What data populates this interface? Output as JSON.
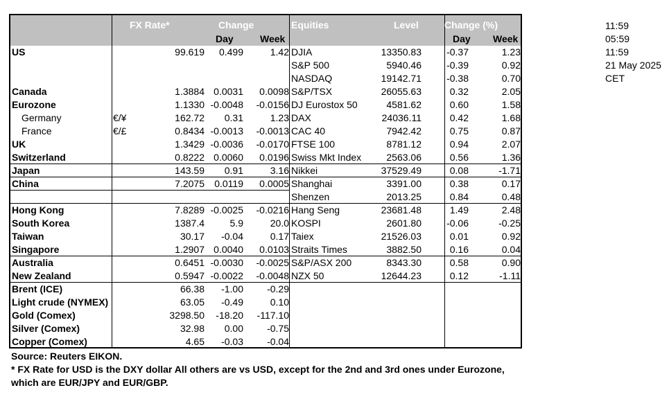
{
  "headers": {
    "fx_rate": "FX Rate*",
    "change": "Change",
    "day": "Day",
    "week": "Week",
    "equities": "Equities",
    "level": "Level",
    "change_pct": "Change (%)",
    "day2": "Day",
    "week2": "Week"
  },
  "rows": [
    {
      "name": "US",
      "sym": "",
      "fx": "99.619",
      "fxd": "0.499",
      "fxw": "1.42",
      "idx": "DJIA",
      "lvl": "13350.83",
      "ed": "-0.37",
      "ew": "1.23"
    },
    {
      "name": "",
      "sym": "",
      "fx": "",
      "fxd": "",
      "fxw": "",
      "idx": "S&P 500",
      "lvl": "5940.46",
      "ed": "-0.39",
      "ew": "0.92"
    },
    {
      "name": "",
      "sym": "",
      "fx": "",
      "fxd": "",
      "fxw": "",
      "idx": "NASDAQ",
      "lvl": "19142.71",
      "ed": "-0.38",
      "ew": "0.70"
    },
    {
      "name": "Canada",
      "sym": "",
      "fx": "1.3884",
      "fxd": "0.0031",
      "fxw": "0.0098",
      "idx": "S&P/TSX",
      "lvl": "26055.63",
      "ed": "0.32",
      "ew": "2.05"
    },
    {
      "name": "Eurozone",
      "sym": "",
      "fx": "1.1330",
      "fxd": "-0.0048",
      "fxw": "-0.0156",
      "idx": "DJ Eurostox 50",
      "lvl": "4581.62",
      "ed": "0.60",
      "ew": "1.58"
    },
    {
      "name": "Germany",
      "sym": "€/¥",
      "fx": "162.72",
      "fxd": "0.31",
      "fxw": "1.23",
      "idx": "DAX",
      "lvl": "24036.11",
      "ed": "0.42",
      "ew": "1.68"
    },
    {
      "name": "France",
      "sym": "€/£",
      "fx": "0.8434",
      "fxd": "-0.0013",
      "fxw": "-0.0013",
      "idx": "CAC 40",
      "lvl": "7942.42",
      "ed": "0.75",
      "ew": "0.87"
    },
    {
      "name": "UK",
      "sym": "",
      "fx": "1.3429",
      "fxd": "-0.0036",
      "fxw": "-0.0170",
      "idx": "FTSE 100",
      "lvl": "8781.12",
      "ed": "0.94",
      "ew": "2.07"
    },
    {
      "name": "Switzerland",
      "sym": "",
      "fx": "0.8222",
      "fxd": "0.0060",
      "fxw": "0.0196",
      "idx": "Swiss Mkt Index",
      "lvl": "2563.06",
      "ed": "0.56",
      "ew": "1.36"
    },
    {
      "name": "Japan",
      "sym": "",
      "fx": "143.59",
      "fxd": "0.91",
      "fxw": "3.16",
      "idx": "Nikkei",
      "lvl": "37529.49",
      "ed": "0.08",
      "ew": "-1.71"
    },
    {
      "name": "China",
      "sym": "",
      "fx": "7.2075",
      "fxd": "0.0119",
      "fxw": "0.0005",
      "idx": "Shanghai",
      "lvl": "3391.00",
      "ed": "0.38",
      "ew": "0.17"
    },
    {
      "name": "",
      "sym": "",
      "fx": "",
      "fxd": "",
      "fxw": "",
      "idx": "Shenzen",
      "lvl": "2013.25",
      "ed": "0.84",
      "ew": "0.48"
    },
    {
      "name": "Hong Kong",
      "sym": "",
      "fx": "7.8289",
      "fxd": "-0.0025",
      "fxw": "-0.0216",
      "idx": "Hang Seng",
      "lvl": "23681.48",
      "ed": "1.49",
      "ew": "2.48"
    },
    {
      "name": "South Korea",
      "sym": "",
      "fx": "1387.4",
      "fxd": "5.9",
      "fxw": "20.0",
      "idx": "KOSPI",
      "lvl": "2601.80",
      "ed": "-0.06",
      "ew": "-0.25"
    },
    {
      "name": "Taiwan",
      "sym": "",
      "fx": "30.17",
      "fxd": "-0.04",
      "fxw": "0.17",
      "idx": "Taiex",
      "lvl": "21526.03",
      "ed": "0.01",
      "ew": "0.92"
    },
    {
      "name": "Singapore",
      "sym": "",
      "fx": "1.2907",
      "fxd": "0.0040",
      "fxw": "0.0103",
      "idx": "Straits Times",
      "lvl": "3882.50",
      "ed": "0.16",
      "ew": "0.04"
    },
    {
      "name": "Australia",
      "sym": "",
      "fx": "0.6451",
      "fxd": "-0.0030",
      "fxw": "-0.0025",
      "idx": "S&P/ASX  200",
      "lvl": "8343.30",
      "ed": "0.58",
      "ew": "0.90"
    },
    {
      "name": "New Zealand",
      "sym": "",
      "fx": "0.5947",
      "fxd": "-0.0022",
      "fxw": "-0.0048",
      "idx": "NZX 50",
      "lvl": "12644.23",
      "ed": "0.12",
      "ew": "-1.11"
    },
    {
      "name": "Brent (ICE)",
      "sym": "",
      "fx": "66.38",
      "fxd": "-1.00",
      "fxw": "-0.29",
      "idx": "",
      "lvl": "",
      "ed": "",
      "ew": ""
    },
    {
      "name": "Light crude (NYMEX)",
      "sym": "",
      "fx": "63.05",
      "fxd": "-0.49",
      "fxw": "0.10",
      "idx": "",
      "lvl": "",
      "ed": "",
      "ew": ""
    },
    {
      "name": "Gold (Comex)",
      "sym": "",
      "fx": "3298.50",
      "fxd": "-18.20",
      "fxw": "-117.10",
      "idx": "",
      "lvl": "",
      "ed": "",
      "ew": ""
    },
    {
      "name": "Silver (Comex)",
      "sym": "",
      "fx": "32.98",
      "fxd": "0.00",
      "fxw": "-0.75",
      "idx": "",
      "lvl": "",
      "ed": "",
      "ew": ""
    },
    {
      "name": "Copper (Comex)",
      "sym": "",
      "fx": "4.65",
      "fxd": "-0.03",
      "fxw": "-0.04",
      "idx": "",
      "lvl": "",
      "ed": "",
      "ew": ""
    }
  ],
  "side": [
    "11:59",
    "05:59",
    "11:59",
    "21 May 2025",
    "CET"
  ],
  "footnotes": {
    "source": "Source:  Reuters EIKON.",
    "note1": "* FX Rate for USD is the DXY dollar  All others are vs USD, except for the 2nd and 3rd ones under Eurozone,",
    "note2": " which are EUR/JPY and EUR/GBP."
  }
}
